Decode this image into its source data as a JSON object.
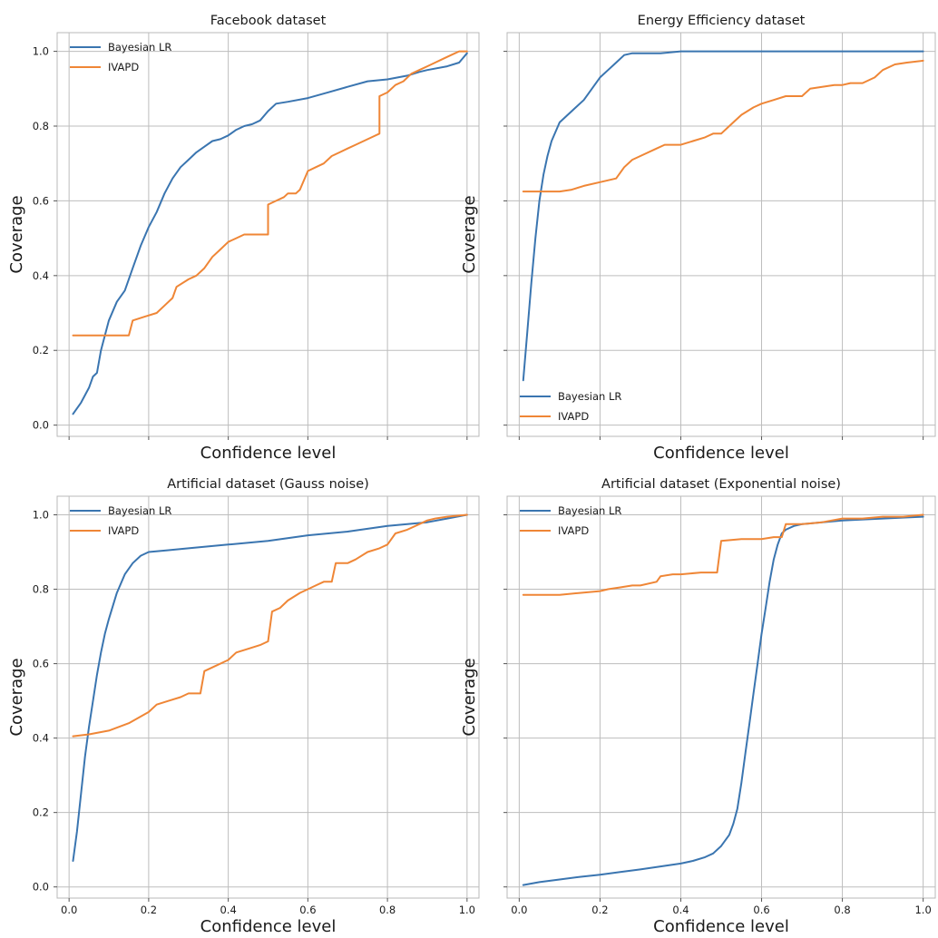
{
  "colors": {
    "bayesian_lr": "#3a75b0",
    "ivapd": "#ef8636"
  },
  "chart_data": [
    {
      "type": "line",
      "title": "Facebook dataset",
      "xlabel": "Confidence level",
      "ylabel": "Coverage",
      "xlim": [
        -0.03,
        1.03
      ],
      "ylim": [
        -0.03,
        1.05
      ],
      "xticks": [
        0.0,
        0.2,
        0.4,
        0.6,
        0.8,
        1.0
      ],
      "xtick_labels": [],
      "yticks": [
        0.0,
        0.2,
        0.4,
        0.6,
        0.8,
        1.0
      ],
      "ytick_labels": [
        "0.0",
        "0.2",
        "0.4",
        "0.6",
        "0.8",
        "1.0"
      ],
      "grid": true,
      "legend_position": "upper-left",
      "series": [
        {
          "name": "Bayesian LR",
          "color": "#3a75b0",
          "x": [
            0.01,
            0.03,
            0.05,
            0.06,
            0.07,
            0.08,
            0.1,
            0.12,
            0.14,
            0.16,
            0.18,
            0.2,
            0.22,
            0.24,
            0.26,
            0.28,
            0.3,
            0.32,
            0.34,
            0.36,
            0.38,
            0.4,
            0.42,
            0.44,
            0.46,
            0.48,
            0.5,
            0.52,
            0.55,
            0.6,
            0.65,
            0.7,
            0.75,
            0.8,
            0.85,
            0.88,
            0.9,
            0.95,
            0.98,
            1.0
          ],
          "y": [
            0.03,
            0.06,
            0.1,
            0.13,
            0.14,
            0.2,
            0.28,
            0.33,
            0.36,
            0.42,
            0.48,
            0.53,
            0.57,
            0.62,
            0.66,
            0.69,
            0.71,
            0.73,
            0.745,
            0.76,
            0.765,
            0.775,
            0.79,
            0.8,
            0.805,
            0.815,
            0.84,
            0.86,
            0.865,
            0.875,
            0.89,
            0.905,
            0.92,
            0.925,
            0.935,
            0.945,
            0.95,
            0.96,
            0.97,
            0.995
          ]
        },
        {
          "name": "IVAPD",
          "color": "#ef8636",
          "x": [
            0.01,
            0.05,
            0.1,
            0.15,
            0.16,
            0.19,
            0.22,
            0.24,
            0.26,
            0.27,
            0.3,
            0.32,
            0.34,
            0.36,
            0.38,
            0.4,
            0.42,
            0.44,
            0.46,
            0.48,
            0.5,
            0.5,
            0.52,
            0.54,
            0.55,
            0.57,
            0.58,
            0.6,
            0.62,
            0.64,
            0.66,
            0.68,
            0.7,
            0.72,
            0.74,
            0.76,
            0.78,
            0.78,
            0.8,
            0.82,
            0.84,
            0.86,
            0.88,
            0.9,
            0.92,
            0.94,
            0.96,
            0.98,
            1.0
          ],
          "y": [
            0.24,
            0.24,
            0.24,
            0.24,
            0.28,
            0.29,
            0.3,
            0.32,
            0.34,
            0.37,
            0.39,
            0.4,
            0.42,
            0.45,
            0.47,
            0.49,
            0.5,
            0.51,
            0.51,
            0.51,
            0.51,
            0.59,
            0.6,
            0.61,
            0.62,
            0.62,
            0.63,
            0.68,
            0.69,
            0.7,
            0.72,
            0.73,
            0.74,
            0.75,
            0.76,
            0.77,
            0.78,
            0.88,
            0.89,
            0.91,
            0.92,
            0.94,
            0.95,
            0.96,
            0.97,
            0.98,
            0.99,
            1.0,
            1.0
          ]
        }
      ]
    },
    {
      "type": "line",
      "title": "Energy Efficiency dataset",
      "xlabel": "Confidence level",
      "ylabel": "Coverage",
      "xlim": [
        -0.03,
        1.03
      ],
      "ylim": [
        -0.03,
        1.05
      ],
      "xticks": [
        0.0,
        0.2,
        0.4,
        0.6,
        0.8,
        1.0
      ],
      "xtick_labels": [],
      "yticks": [
        0.0,
        0.2,
        0.4,
        0.6,
        0.8,
        1.0
      ],
      "ytick_labels": [],
      "grid": true,
      "legend_position": "lower-left",
      "series": [
        {
          "name": "Bayesian LR",
          "color": "#3a75b0",
          "x": [
            0.01,
            0.02,
            0.03,
            0.04,
            0.05,
            0.06,
            0.07,
            0.08,
            0.1,
            0.12,
            0.14,
            0.16,
            0.18,
            0.2,
            0.22,
            0.24,
            0.26,
            0.28,
            0.3,
            0.35,
            0.4,
            0.5,
            0.6,
            0.7,
            0.8,
            0.9,
            1.0
          ],
          "y": [
            0.12,
            0.25,
            0.38,
            0.5,
            0.6,
            0.67,
            0.72,
            0.76,
            0.81,
            0.83,
            0.85,
            0.87,
            0.9,
            0.93,
            0.95,
            0.97,
            0.99,
            0.995,
            0.995,
            0.995,
            1.0,
            1.0,
            1.0,
            1.0,
            1.0,
            1.0,
            1.0
          ]
        },
        {
          "name": "IVAPD",
          "color": "#ef8636",
          "x": [
            0.01,
            0.05,
            0.1,
            0.13,
            0.16,
            0.2,
            0.24,
            0.26,
            0.28,
            0.3,
            0.34,
            0.36,
            0.4,
            0.43,
            0.46,
            0.48,
            0.5,
            0.52,
            0.55,
            0.58,
            0.6,
            0.63,
            0.66,
            0.7,
            0.72,
            0.75,
            0.78,
            0.8,
            0.82,
            0.85,
            0.88,
            0.9,
            0.93,
            0.96,
            1.0
          ],
          "y": [
            0.625,
            0.625,
            0.625,
            0.63,
            0.64,
            0.65,
            0.66,
            0.69,
            0.71,
            0.72,
            0.74,
            0.75,
            0.75,
            0.76,
            0.77,
            0.78,
            0.78,
            0.8,
            0.83,
            0.85,
            0.86,
            0.87,
            0.88,
            0.88,
            0.9,
            0.905,
            0.91,
            0.91,
            0.915,
            0.915,
            0.93,
            0.95,
            0.965,
            0.97,
            0.975
          ]
        }
      ]
    },
    {
      "type": "line",
      "title": "Artificial dataset (Gauss noise)",
      "xlabel": "Confidence level",
      "ylabel": "Coverage",
      "xlim": [
        -0.03,
        1.03
      ],
      "ylim": [
        -0.03,
        1.05
      ],
      "xticks": [
        0.0,
        0.2,
        0.4,
        0.6,
        0.8,
        1.0
      ],
      "xtick_labels": [
        "0.0",
        "0.2",
        "0.4",
        "0.6",
        "0.8",
        "1.0"
      ],
      "yticks": [
        0.0,
        0.2,
        0.4,
        0.6,
        0.8,
        1.0
      ],
      "ytick_labels": [
        "0.0",
        "0.2",
        "0.4",
        "0.6",
        "0.8",
        "1.0"
      ],
      "grid": true,
      "legend_position": "upper-left",
      "series": [
        {
          "name": "Bayesian LR",
          "color": "#3a75b0",
          "x": [
            0.01,
            0.02,
            0.03,
            0.04,
            0.05,
            0.06,
            0.07,
            0.08,
            0.09,
            0.1,
            0.12,
            0.14,
            0.16,
            0.18,
            0.2,
            0.25,
            0.3,
            0.4,
            0.5,
            0.6,
            0.7,
            0.8,
            0.9,
            0.95,
            1.0
          ],
          "y": [
            0.07,
            0.15,
            0.25,
            0.35,
            0.43,
            0.5,
            0.57,
            0.63,
            0.68,
            0.72,
            0.79,
            0.84,
            0.87,
            0.89,
            0.9,
            0.905,
            0.91,
            0.92,
            0.93,
            0.945,
            0.955,
            0.97,
            0.98,
            0.99,
            1.0
          ]
        },
        {
          "name": "IVAPD",
          "color": "#ef8636",
          "x": [
            0.01,
            0.05,
            0.1,
            0.15,
            0.2,
            0.22,
            0.25,
            0.28,
            0.3,
            0.33,
            0.34,
            0.36,
            0.4,
            0.42,
            0.45,
            0.48,
            0.5,
            0.51,
            0.53,
            0.55,
            0.58,
            0.6,
            0.62,
            0.64,
            0.66,
            0.67,
            0.7,
            0.72,
            0.75,
            0.78,
            0.8,
            0.82,
            0.85,
            0.88,
            0.9,
            0.92,
            0.95,
            1.0
          ],
          "y": [
            0.405,
            0.41,
            0.42,
            0.44,
            0.47,
            0.49,
            0.5,
            0.51,
            0.52,
            0.52,
            0.58,
            0.59,
            0.61,
            0.63,
            0.64,
            0.65,
            0.66,
            0.74,
            0.75,
            0.77,
            0.79,
            0.8,
            0.81,
            0.82,
            0.82,
            0.87,
            0.87,
            0.88,
            0.9,
            0.91,
            0.92,
            0.95,
            0.96,
            0.975,
            0.985,
            0.99,
            0.995,
            1.0
          ]
        }
      ]
    },
    {
      "type": "line",
      "title": "Artificial dataset (Exponential noise)",
      "xlabel": "Confidence level",
      "ylabel": "Coverage",
      "xlim": [
        -0.03,
        1.03
      ],
      "ylim": [
        -0.03,
        1.05
      ],
      "xticks": [
        0.0,
        0.2,
        0.4,
        0.6,
        0.8,
        1.0
      ],
      "xtick_labels": [
        "0.0",
        "0.2",
        "0.4",
        "0.6",
        "0.8",
        "1.0"
      ],
      "yticks": [
        0.0,
        0.2,
        0.4,
        0.6,
        0.8,
        1.0
      ],
      "ytick_labels": [],
      "grid": true,
      "legend_position": "upper-left",
      "series": [
        {
          "name": "Bayesian LR",
          "color": "#3a75b0",
          "x": [
            0.01,
            0.05,
            0.1,
            0.15,
            0.2,
            0.25,
            0.3,
            0.35,
            0.4,
            0.43,
            0.46,
            0.48,
            0.5,
            0.52,
            0.53,
            0.54,
            0.55,
            0.56,
            0.57,
            0.58,
            0.59,
            0.6,
            0.61,
            0.62,
            0.63,
            0.64,
            0.65,
            0.66,
            0.68,
            0.7,
            0.75,
            0.8,
            0.9,
            1.0
          ],
          "y": [
            0.005,
            0.013,
            0.02,
            0.027,
            0.033,
            0.04,
            0.047,
            0.055,
            0.063,
            0.07,
            0.08,
            0.09,
            0.11,
            0.14,
            0.17,
            0.21,
            0.28,
            0.36,
            0.44,
            0.52,
            0.6,
            0.68,
            0.75,
            0.82,
            0.88,
            0.92,
            0.95,
            0.96,
            0.97,
            0.975,
            0.98,
            0.985,
            0.99,
            0.995
          ]
        },
        {
          "name": "IVAPD",
          "color": "#ef8636",
          "x": [
            0.01,
            0.05,
            0.1,
            0.15,
            0.2,
            0.22,
            0.25,
            0.28,
            0.3,
            0.34,
            0.35,
            0.38,
            0.4,
            0.45,
            0.49,
            0.5,
            0.55,
            0.6,
            0.63,
            0.65,
            0.66,
            0.7,
            0.75,
            0.8,
            0.85,
            0.9,
            0.95,
            1.0
          ],
          "y": [
            0.785,
            0.785,
            0.785,
            0.79,
            0.795,
            0.8,
            0.805,
            0.81,
            0.81,
            0.82,
            0.835,
            0.84,
            0.84,
            0.845,
            0.845,
            0.93,
            0.935,
            0.935,
            0.94,
            0.94,
            0.975,
            0.975,
            0.98,
            0.99,
            0.99,
            0.995,
            0.995,
            1.0
          ]
        }
      ]
    }
  ]
}
